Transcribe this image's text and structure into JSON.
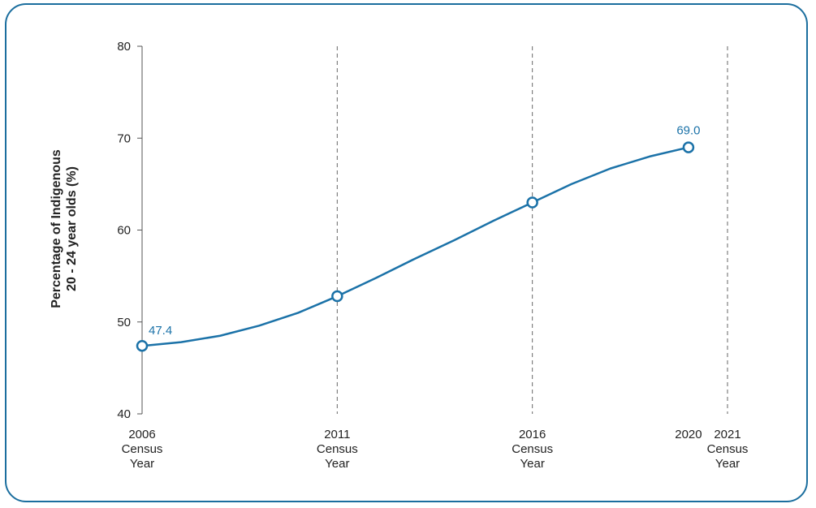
{
  "colors": {
    "line": "#1b72a8",
    "frame": "#1b6e9e",
    "axis": "#555555",
    "gridline": "#666666"
  },
  "chart_data": {
    "type": "line",
    "title": "",
    "ylabel_lines": [
      "Percentage of Indigenous",
      "20 - 24 year olds (%)"
    ],
    "xlabel": "",
    "ylim": [
      40,
      80
    ],
    "yticks": [
      40,
      50,
      60,
      70,
      80
    ],
    "xlim": [
      2006,
      2021
    ],
    "xticks": [
      {
        "x": 2006,
        "lines": [
          "2006",
          "Census",
          "Year"
        ]
      },
      {
        "x": 2011,
        "lines": [
          "2011",
          "Census",
          "Year"
        ]
      },
      {
        "x": 2016,
        "lines": [
          "2016",
          "Census",
          "Year"
        ]
      },
      {
        "x": 2020,
        "lines": [
          "2020"
        ]
      },
      {
        "x": 2021,
        "lines": [
          "2021",
          "Census",
          "Year"
        ]
      }
    ],
    "vertical_dashed_lines_at": [
      2011,
      2016,
      2021
    ],
    "series": [
      {
        "points": [
          {
            "x": 2006,
            "y": 47.4
          },
          {
            "x": 2007,
            "y": 47.8
          },
          {
            "x": 2008,
            "y": 48.5
          },
          {
            "x": 2009,
            "y": 49.6
          },
          {
            "x": 2010,
            "y": 51.0
          },
          {
            "x": 2011,
            "y": 52.8
          },
          {
            "x": 2012,
            "y": 54.8
          },
          {
            "x": 2013,
            "y": 56.9
          },
          {
            "x": 2014,
            "y": 58.9
          },
          {
            "x": 2015,
            "y": 61.0
          },
          {
            "x": 2016,
            "y": 63.0
          },
          {
            "x": 2017,
            "y": 65.0
          },
          {
            "x": 2018,
            "y": 66.7
          },
          {
            "x": 2019,
            "y": 68.0
          },
          {
            "x": 2020,
            "y": 69.0
          }
        ],
        "markers_at": [
          2006,
          2011,
          2016,
          2020
        ],
        "data_labels": [
          {
            "x": 2006,
            "text": "47.4"
          },
          {
            "x": 2020,
            "text": "69.0"
          }
        ]
      }
    ]
  }
}
